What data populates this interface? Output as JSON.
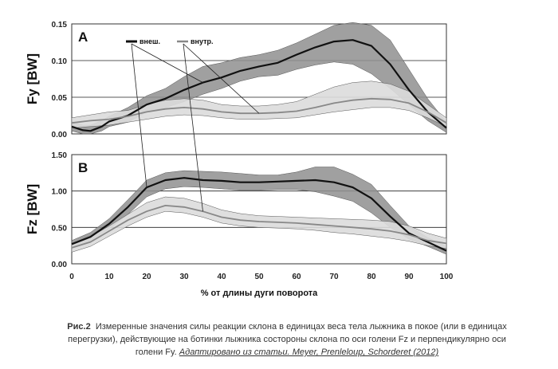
{
  "chart_data": {
    "type": "line",
    "xlabel": "% от длины дуги поворота",
    "x_ticks": [
      "0",
      "10",
      "20",
      "30",
      "40",
      "50",
      "60",
      "70",
      "80",
      "90",
      "100"
    ],
    "legend": {
      "outer": "внеш.",
      "inner": "внутр."
    },
    "panels": [
      {
        "letter": "A",
        "ylabel": "Fy [BW]",
        "ylim": [
          0,
          0.15
        ],
        "y_ticks": [
          "0.00",
          "0.05",
          "0.10",
          "0.15"
        ],
        "series": [
          {
            "key": "outer",
            "x": [
              0,
              3,
              5,
              8,
              10,
              15,
              20,
              25,
              30,
              35,
              40,
              45,
              50,
              55,
              60,
              65,
              70,
              75,
              80,
              85,
              90,
              95,
              100
            ],
            "mean": [
              0.01,
              0.005,
              0.004,
              0.01,
              0.017,
              0.025,
              0.04,
              0.048,
              0.06,
              0.07,
              0.077,
              0.086,
              0.092,
              0.097,
              0.108,
              0.118,
              0.126,
              0.128,
              0.12,
              0.095,
              0.06,
              0.03,
              0.008
            ],
            "lower": [
              0.004,
              0.0,
              0.0,
              0.004,
              0.01,
              0.016,
              0.03,
              0.036,
              0.044,
              0.054,
              0.062,
              0.072,
              0.078,
              0.08,
              0.088,
              0.094,
              0.098,
              0.095,
              0.082,
              0.062,
              0.04,
              0.018,
              0.002
            ],
            "upper": [
              0.017,
              0.012,
              0.012,
              0.018,
              0.024,
              0.036,
              0.052,
              0.062,
              0.078,
              0.092,
              0.097,
              0.104,
              0.108,
              0.114,
              0.124,
              0.136,
              0.148,
              0.152,
              0.148,
              0.128,
              0.088,
              0.048,
              0.016
            ]
          },
          {
            "key": "inner",
            "x": [
              0,
              5,
              10,
              15,
              20,
              25,
              30,
              35,
              40,
              45,
              50,
              55,
              60,
              65,
              70,
              75,
              80,
              85,
              90,
              95,
              100
            ],
            "mean": [
              0.015,
              0.018,
              0.02,
              0.024,
              0.03,
              0.034,
              0.036,
              0.034,
              0.03,
              0.028,
              0.028,
              0.029,
              0.031,
              0.036,
              0.042,
              0.046,
              0.048,
              0.047,
              0.042,
              0.03,
              0.015
            ],
            "lower": [
              0.008,
              0.01,
              0.012,
              0.016,
              0.02,
              0.024,
              0.026,
              0.025,
              0.022,
              0.02,
              0.02,
              0.021,
              0.022,
              0.026,
              0.03,
              0.033,
              0.036,
              0.036,
              0.032,
              0.022,
              0.01
            ],
            "upper": [
              0.022,
              0.026,
              0.03,
              0.032,
              0.04,
              0.046,
              0.048,
              0.046,
              0.04,
              0.038,
              0.038,
              0.04,
              0.044,
              0.054,
              0.064,
              0.07,
              0.072,
              0.068,
              0.058,
              0.04,
              0.022
            ]
          }
        ]
      },
      {
        "letter": "B",
        "ylabel": "Fz [BW]",
        "ylim": [
          0,
          1.5
        ],
        "y_ticks": [
          "0.00",
          "0.50",
          "1.00",
          "1.50"
        ],
        "series": [
          {
            "key": "outer",
            "x": [
              0,
              5,
              10,
              15,
              20,
              25,
              30,
              35,
              40,
              45,
              50,
              55,
              60,
              65,
              70,
              75,
              80,
              85,
              90,
              95,
              100
            ],
            "mean": [
              0.27,
              0.37,
              0.55,
              0.78,
              1.05,
              1.15,
              1.18,
              1.15,
              1.14,
              1.12,
              1.12,
              1.13,
              1.14,
              1.15,
              1.12,
              1.05,
              0.9,
              0.65,
              0.42,
              0.3,
              0.18
            ],
            "lower": [
              0.22,
              0.32,
              0.48,
              0.68,
              0.92,
              1.03,
              1.06,
              1.05,
              1.03,
              1.01,
              1.01,
              1.02,
              1.02,
              0.99,
              0.93,
              0.86,
              0.7,
              0.5,
              0.34,
              0.24,
              0.13
            ],
            "upper": [
              0.32,
              0.43,
              0.62,
              0.88,
              1.15,
              1.25,
              1.28,
              1.27,
              1.26,
              1.24,
              1.22,
              1.22,
              1.26,
              1.33,
              1.33,
              1.23,
              1.09,
              0.8,
              0.52,
              0.36,
              0.24
            ]
          },
          {
            "key": "inner",
            "x": [
              0,
              5,
              10,
              15,
              20,
              25,
              30,
              35,
              40,
              45,
              50,
              55,
              60,
              65,
              70,
              75,
              80,
              85,
              90,
              95,
              100
            ],
            "mean": [
              0.22,
              0.3,
              0.45,
              0.6,
              0.72,
              0.8,
              0.78,
              0.72,
              0.64,
              0.6,
              0.58,
              0.57,
              0.56,
              0.54,
              0.52,
              0.5,
              0.48,
              0.45,
              0.4,
              0.32,
              0.28
            ],
            "lower": [
              0.16,
              0.24,
              0.38,
              0.52,
              0.64,
              0.72,
              0.7,
              0.64,
              0.56,
              0.52,
              0.5,
              0.49,
              0.48,
              0.46,
              0.43,
              0.41,
              0.38,
              0.35,
              0.31,
              0.25,
              0.21
            ],
            "upper": [
              0.28,
              0.37,
              0.52,
              0.68,
              0.84,
              0.92,
              0.9,
              0.83,
              0.74,
              0.69,
              0.66,
              0.65,
              0.64,
              0.63,
              0.62,
              0.61,
              0.6,
              0.58,
              0.52,
              0.42,
              0.35
            ]
          }
        ]
      }
    ]
  },
  "caption": {
    "label": "Рис.2",
    "text": "Измеренные значения силы реакции склона в единицах веса тела лыжника в покое (или в единицах перегрузки), действующие на ботинки лыжника состороны склона по оси голени Fz и перпендикулярно оси голени Fy.",
    "source": "Адаптировано из статьи.   Meyer, Prenleloup, Schorderet (2012)"
  }
}
